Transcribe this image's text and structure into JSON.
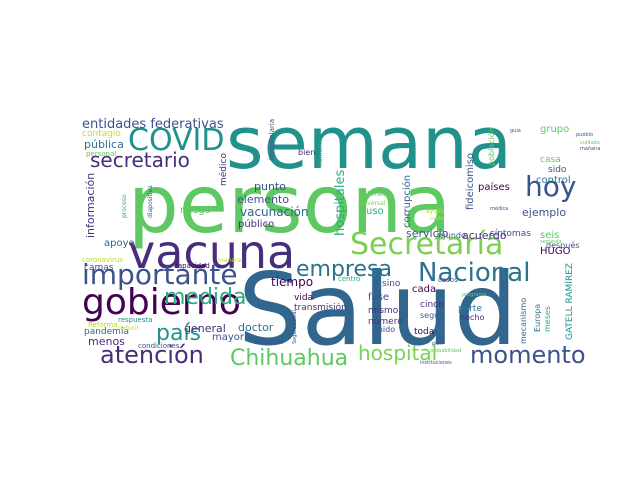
{
  "words": [
    {
      "text": "Salud",
      "color": "#31668e"
    },
    {
      "text": "persona",
      "color": "#5ec962"
    },
    {
      "text": "semana",
      "color": "#21918c"
    },
    {
      "text": "vacuna",
      "color": "#472d7b"
    },
    {
      "text": "Secretaría",
      "color": "#7ad151"
    },
    {
      "text": "gobierno",
      "color": "#440154"
    },
    {
      "text": "importante",
      "color": "#3b528b"
    },
    {
      "text": "Nacional",
      "color": "#2c728e"
    },
    {
      "text": "COVID",
      "color": "#21918c"
    },
    {
      "text": "hoy",
      "color": "#3b528b"
    },
    {
      "text": "momento",
      "color": "#3b528b"
    },
    {
      "text": "atención",
      "color": "#472d7b"
    },
    {
      "text": "Chihuahua",
      "color": "#5ec962"
    },
    {
      "text": "empresa",
      "color": "#2c728e"
    },
    {
      "text": "medida",
      "color": "#28ae80"
    },
    {
      "text": "país",
      "color": "#21918c"
    },
    {
      "text": "hospital",
      "color": "#7ad151"
    },
    {
      "text": "secretario",
      "color": "#472d7b"
    },
    {
      "text": "entidades federativas",
      "color": "#3b528b"
    },
    {
      "text": "hospitales",
      "color": "#28ae80"
    },
    {
      "text": "información",
      "color": "#472d7b"
    },
    {
      "text": "vacunación",
      "color": "#31668e"
    },
    {
      "text": "general",
      "color": "#472d7b"
    },
    {
      "text": "doctor",
      "color": "#2c728e"
    },
    {
      "text": "menos",
      "color": "#472d7b"
    },
    {
      "text": "tiempo",
      "color": "#440154"
    },
    {
      "text": "servicio",
      "color": "#3b528b"
    },
    {
      "text": "acuerdo",
      "color": "#472d7b"
    },
    {
      "text": "ejemplo",
      "color": "#3b528b"
    },
    {
      "text": "punto",
      "color": "#3b528b"
    },
    {
      "text": "elemento",
      "color": "#3b528b"
    },
    {
      "text": "médico",
      "color": "#472d7b"
    },
    {
      "text": "pública",
      "color": "#2c728e"
    },
    {
      "text": "contagio",
      "color": "#b5de2b"
    },
    {
      "text": "grupo",
      "color": "#5ec962"
    },
    {
      "text": "casa",
      "color": "#5ec962"
    },
    {
      "text": "sido",
      "color": "#3b528b"
    },
    {
      "text": "control",
      "color": "#2c728e"
    },
    {
      "text": "países",
      "color": "#440154"
    },
    {
      "text": "fideicomiso",
      "color": "#3b528b"
    },
    {
      "text": "corrupción",
      "color": "#31668e"
    },
    {
      "text": "uso",
      "color": "#28ae80"
    },
    {
      "text": "riesgo",
      "color": "#5ec962"
    },
    {
      "text": "apoyo",
      "color": "#31668e"
    },
    {
      "text": "HUGO",
      "color": "#440154"
    },
    {
      "text": "seis",
      "color": "#5ec962"
    },
    {
      "text": "síntomas",
      "color": "#3b528b"
    },
    {
      "text": "cada",
      "color": "#440154"
    },
    {
      "text": "fase",
      "color": "#3b528b"
    },
    {
      "text": "mismo",
      "color": "#472d7b"
    },
    {
      "text": "cinco",
      "color": "#472d7b"
    },
    {
      "text": "parte",
      "color": "#2c728e"
    },
    {
      "text": "hecho",
      "color": "#472d7b"
    },
    {
      "text": "seguir",
      "color": "#31668e"
    },
    {
      "text": "toda",
      "color": "#440154"
    },
    {
      "text": "número",
      "color": "#472d7b"
    },
    {
      "text": "Unido",
      "color": "#3b528b"
    },
    {
      "text": "vida",
      "color": "#440154"
    },
    {
      "text": "transmisión",
      "color": "#472d7b"
    },
    {
      "text": "mayor",
      "color": "#3b528b"
    },
    {
      "text": "público",
      "color": "#472d7b"
    },
    {
      "text": "camas",
      "color": "#3b528b"
    },
    {
      "text": "pandemia",
      "color": "#31668e"
    },
    {
      "text": "Europa",
      "color": "#2c728e"
    },
    {
      "text": "GATELL RAMÍREZ",
      "color": "#21918c"
    },
    {
      "text": "mecanismo",
      "color": "#31668e"
    },
    {
      "text": "meses",
      "color": "#28ae80"
    },
    {
      "text": "población",
      "color": "#5ec962"
    },
    {
      "text": "bien",
      "color": "#472d7b"
    },
    {
      "text": "hospitalaria",
      "color": "#3b528b"
    },
    {
      "text": "proceso",
      "color": "#28ae80"
    },
    {
      "text": "diapositiva",
      "color": "#3b528b"
    },
    {
      "text": "capacidad",
      "color": "#440154"
    },
    {
      "text": "respuesta",
      "color": "#21918c"
    },
    {
      "text": "Reforma",
      "color": "#b5de2b"
    },
    {
      "text": "condiciones",
      "color": "#3b528b"
    },
    {
      "text": "personal",
      "color": "#5ec962"
    },
    {
      "text": "humanos",
      "color": "#28ae80"
    },
    {
      "text": "millones",
      "color": "#5ec962"
    },
    {
      "text": "universal",
      "color": "#7ad151"
    },
    {
      "text": "ayuda",
      "color": "#b5de2b"
    },
    {
      "text": "sino",
      "color": "#3b528b"
    },
    {
      "text": "casos",
      "color": "#3b528b"
    },
    {
      "text": "centro",
      "color": "#28ae80"
    },
    {
      "text": "mundo",
      "color": "#3b528b"
    },
    {
      "text": "después",
      "color": "#3b528b"
    },
    {
      "text": "coronavirus",
      "color": "#b5de2b"
    },
    {
      "text": "manera",
      "color": "#b5de2b"
    },
    {
      "text": "reducción",
      "color": "#3b528b"
    },
    {
      "text": "instituciones",
      "color": "#3b528b"
    },
    {
      "text": "plan",
      "color": "#3b528b"
    },
    {
      "text": "probabilidad",
      "color": "#5ec962"
    },
    {
      "text": "Seguro Social",
      "color": "#3b528b"
    },
    {
      "text": "guía",
      "color": "#3b528b"
    },
    {
      "text": "pueblo",
      "color": "#3b528b"
    },
    {
      "text": "cuidado",
      "color": "#5ec962"
    },
    {
      "text": "mañana",
      "color": "#3b528b"
    },
    {
      "text": "médica",
      "color": "#3b528b"
    },
    {
      "text": "segundo",
      "color": "#5ec962"
    },
    {
      "text": "programa",
      "color": "#5ec962"
    },
    {
      "text": "reducir",
      "color": "#b5de2b"
    },
    {
      "text": "covid",
      "color": "#b5de2b"
    }
  ]
}
